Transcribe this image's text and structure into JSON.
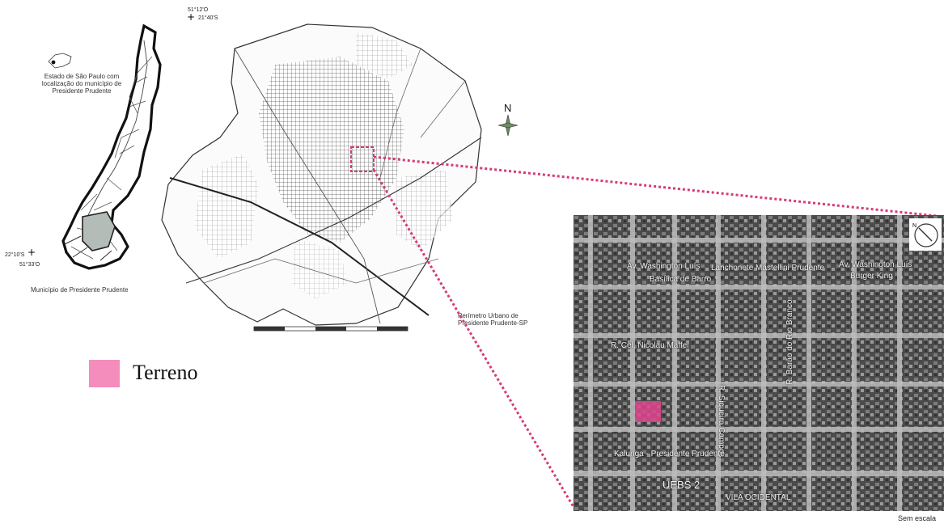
{
  "state_map": {
    "caption": "Estado de São Paulo com localização do município de Presidente Prudente",
    "municipality_caption": "Município de Presidente Prudente"
  },
  "coordinates": {
    "top_lon": "51°12'O",
    "top_lat": "21°40'S",
    "left_lat": "22°10'S",
    "left_lon": "51°33'O"
  },
  "urban_map": {
    "caption": "Perímetro Urbano de Presidente Prudente-SP",
    "north_label": "N"
  },
  "legend": {
    "label": "Terreno",
    "color": "#f48cbc"
  },
  "aerial": {
    "labels": {
      "av1": "Av. Washington Luís",
      "point1": "Basílica de Barro",
      "lanchonete": "Lanchonete Mastellini Prudente",
      "av2": "Av. Washington Luís",
      "burger": "Burger King",
      "nicolau": "R. Cel. Nicolau Maffei",
      "vertical1": "R. Siqueira Campos",
      "vertical2": "R. Barão do Rio Branco",
      "kalunga": "Kalunga - Presidente Prudente",
      "uebs": "UEBS 2",
      "vila": "VILA OCIDENTAL",
      "compass_n": "N"
    },
    "no_scale": "Sem escala"
  },
  "colors": {
    "highlight": "#e0448e",
    "dotted": "#d63a7a"
  }
}
